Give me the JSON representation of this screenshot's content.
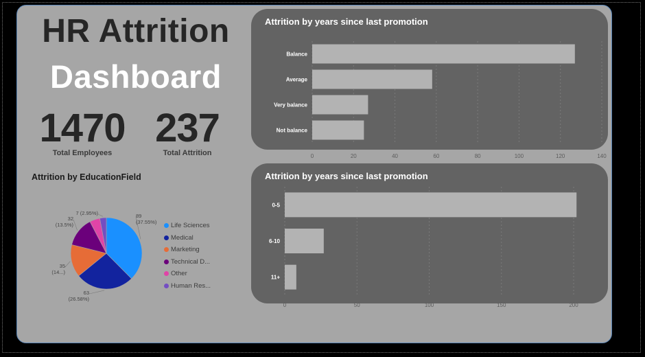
{
  "title": {
    "line1": "HR Attrition",
    "line2": "Dashboard"
  },
  "kpis": [
    {
      "value": "1470",
      "label": "Total Employees"
    },
    {
      "value": "237",
      "label": "Total Attrition"
    }
  ],
  "colors": {
    "background": "#a6a6a6",
    "panel": "#636363",
    "bar": "#b3b3b3",
    "page_border": "#5a86b8"
  },
  "chart_data": [
    {
      "type": "bar",
      "orientation": "horizontal",
      "title": "Attrition by years since last promotion",
      "categories": [
        "Balance",
        "Average",
        "Very balance",
        "Not balance"
      ],
      "values": [
        127,
        58,
        27,
        25
      ],
      "xlim": [
        0,
        140
      ],
      "xticks": [
        "0",
        "20",
        "40",
        "60",
        "80",
        "100",
        "120",
        "140"
      ],
      "grid": true
    },
    {
      "type": "bar",
      "orientation": "horizontal",
      "title": "Attrition by years since last promotion",
      "categories": [
        "0-5",
        "6-10",
        "11+"
      ],
      "values": [
        202,
        27,
        8
      ],
      "xlim": [
        0,
        200
      ],
      "xticks": [
        "0",
        "50",
        "100",
        "150",
        "200"
      ],
      "grid": true
    },
    {
      "type": "pie",
      "title": "Attrition by EducationField",
      "categories": [
        "Life Sciences",
        "Medical",
        "Marketing",
        "Technical D...",
        "Other",
        "Human Res..."
      ],
      "values": [
        89,
        63,
        35,
        32,
        11,
        7
      ],
      "colors": [
        "#1a90ff",
        "#12239e",
        "#e66c37",
        "#6b007b",
        "#e044a7",
        "#744ec2"
      ],
      "data_labels": [
        "89 (37.55%)",
        "63 (26.58%)",
        "35 (14...)",
        "32 (13.5%)",
        "",
        "7 (2.95%)"
      ],
      "legend_position": "right"
    }
  ]
}
